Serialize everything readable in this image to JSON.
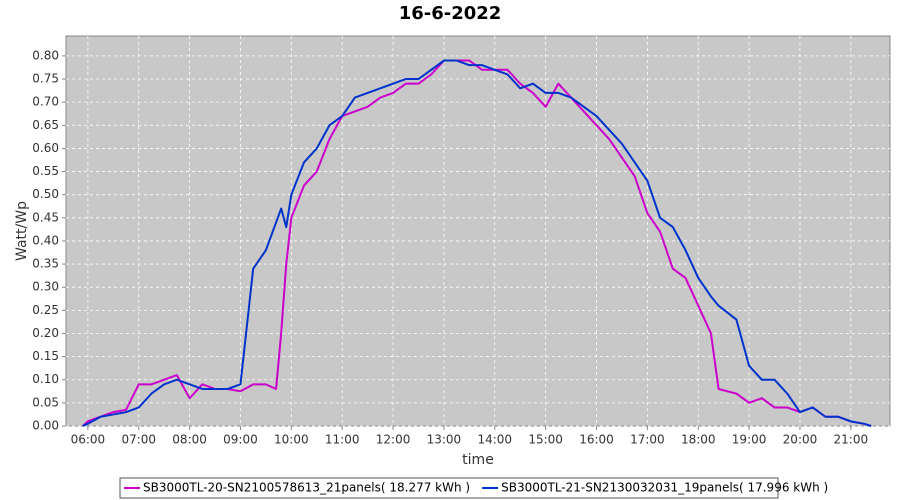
{
  "chart_data": {
    "type": "line",
    "title": "16-6-2022",
    "xlabel": "time",
    "ylabel": "Watt/Wp",
    "x": [
      5.9,
      6,
      6.25,
      6.5,
      6.75,
      7,
      7.25,
      7.5,
      7.75,
      8,
      8.25,
      8.5,
      8.75,
      9,
      9.25,
      9.5,
      9.7,
      9.8,
      9.9,
      10,
      10.25,
      10.5,
      10.75,
      11,
      11.25,
      11.5,
      11.75,
      12,
      12.25,
      12.5,
      12.75,
      13,
      13.25,
      13.5,
      13.75,
      14,
      14.25,
      14.5,
      14.75,
      15,
      15.25,
      15.5,
      15.75,
      16,
      16.25,
      16.5,
      16.75,
      17,
      17.25,
      17.5,
      17.75,
      18,
      18.25,
      18.4,
      18.75,
      19,
      19.25,
      19.5,
      19.75,
      20,
      20.25,
      20.5,
      20.75,
      21,
      21.25,
      21.4
    ],
    "series": [
      {
        "name": "SB3000TL-20-SN2100578613_21panels( 18.277 kWh )",
        "color": "#cc00cc",
        "values": [
          0,
          0.01,
          0.02,
          0.03,
          0.035,
          0.09,
          0.09,
          0.1,
          0.11,
          0.06,
          0.09,
          0.08,
          0.08,
          0.075,
          0.09,
          0.09,
          0.08,
          0.2,
          0.35,
          0.45,
          0.52,
          0.55,
          0.62,
          0.67,
          0.68,
          0.69,
          0.71,
          0.72,
          0.74,
          0.74,
          0.76,
          0.79,
          0.79,
          0.79,
          0.77,
          0.77,
          0.77,
          0.74,
          0.72,
          0.69,
          0.74,
          0.71,
          0.68,
          0.65,
          0.62,
          0.58,
          0.54,
          0.46,
          0.42,
          0.34,
          0.32,
          0.26,
          0.2,
          0.08,
          0.07,
          0.05,
          0.06,
          0.04,
          0.04,
          0.03,
          0.04,
          0.02,
          0.02,
          0.01,
          0.005,
          0
        ]
      },
      {
        "name": "SB3000TL-21-SN2130032031_19panels( 17.996 kWh )",
        "color": "#0033cc",
        "values": [
          0,
          0.005,
          0.02,
          0.025,
          0.03,
          0.04,
          0.07,
          0.09,
          0.1,
          0.09,
          0.08,
          0.08,
          0.08,
          0.09,
          0.34,
          0.38,
          0.44,
          0.47,
          0.43,
          0.5,
          0.57,
          0.6,
          0.65,
          0.67,
          0.71,
          0.72,
          0.73,
          0.74,
          0.75,
          0.75,
          0.77,
          0.79,
          0.79,
          0.78,
          0.78,
          0.77,
          0.76,
          0.73,
          0.74,
          0.72,
          0.72,
          0.71,
          0.69,
          0.67,
          0.64,
          0.61,
          0.57,
          0.53,
          0.45,
          0.43,
          0.38,
          0.32,
          0.28,
          0.26,
          0.23,
          0.13,
          0.1,
          0.1,
          0.07,
          0.03,
          0.04,
          0.02,
          0.02,
          0.01,
          0.005,
          0
        ]
      }
    ],
    "xlim": [
      5.57,
      21.77
    ],
    "xticks": [
      {
        "value": 6,
        "label": "06:00"
      },
      {
        "value": 7,
        "label": "07:00"
      },
      {
        "value": 8,
        "label": "08:00"
      },
      {
        "value": 9,
        "label": "09:00"
      },
      {
        "value": 10,
        "label": "10:00"
      },
      {
        "value": 11,
        "label": "11:00"
      },
      {
        "value": 12,
        "label": "12:00"
      },
      {
        "value": 13,
        "label": "13:00"
      },
      {
        "value": 14,
        "label": "14:00"
      },
      {
        "value": 15,
        "label": "15:00"
      },
      {
        "value": 16,
        "label": "16:00"
      },
      {
        "value": 17,
        "label": "17:00"
      },
      {
        "value": 18,
        "label": "18:00"
      },
      {
        "value": 19,
        "label": "19:00"
      },
      {
        "value": 20,
        "label": "20:00"
      },
      {
        "value": 21,
        "label": "21:00"
      }
    ],
    "ylim": [
      0,
      0.843
    ],
    "yticks": [
      {
        "value": 0,
        "label": "0.00"
      },
      0.05,
      {
        "value": 0.1,
        "label": "0.10"
      },
      0.15,
      {
        "value": 0.2,
        "label": "0.20"
      },
      0.25,
      {
        "value": 0.3,
        "label": "0.30"
      },
      0.35,
      {
        "value": 0.4,
        "label": "0.40"
      },
      0.45,
      {
        "value": 0.5,
        "label": "0.50"
      },
      0.55,
      {
        "value": 0.6,
        "label": "0.60"
      },
      0.65,
      {
        "value": 0.7,
        "label": "0.70"
      },
      0.75,
      {
        "value": 0.8,
        "label": "0.80"
      }
    ],
    "grid": true
  }
}
